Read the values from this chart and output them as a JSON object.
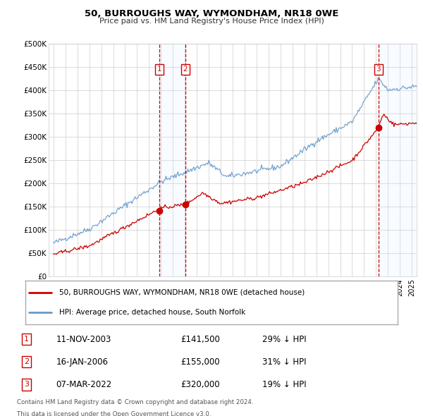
{
  "title": "50, BURROUGHS WAY, WYMONDHAM, NR18 0WE",
  "subtitle": "Price paid vs. HM Land Registry's House Price Index (HPI)",
  "legend_line1": "50, BURROUGHS WAY, WYMONDHAM, NR18 0WE (detached house)",
  "legend_line2": "HPI: Average price, detached house, South Norfolk",
  "footnote1": "Contains HM Land Registry data © Crown copyright and database right 2024.",
  "footnote2": "This data is licensed under the Open Government Licence v3.0.",
  "sale_color": "#cc0000",
  "hpi_color": "#6699cc",
  "purchases": [
    {
      "label": "1",
      "date": "11-NOV-2003",
      "price": 141500,
      "pct": "29%",
      "x": 2003.87
    },
    {
      "label": "2",
      "date": "16-JAN-2006",
      "price": 155000,
      "pct": "31%",
      "x": 2006.04
    },
    {
      "label": "3",
      "date": "07-MAR-2022",
      "price": 320000,
      "pct": "19%",
      "x": 2022.19
    }
  ],
  "table_rows": [
    {
      "num": "1",
      "date": "11-NOV-2003",
      "price": "£141,500",
      "pct": "29% ↓ HPI"
    },
    {
      "num": "2",
      "date": "16-JAN-2006",
      "price": "£155,000",
      "pct": "31% ↓ HPI"
    },
    {
      "num": "3",
      "date": "07-MAR-2022",
      "price": "£320,000",
      "pct": "19% ↓ HPI"
    }
  ],
  "ylim": [
    0,
    500000
  ],
  "yticks": [
    0,
    50000,
    100000,
    150000,
    200000,
    250000,
    300000,
    350000,
    400000,
    450000,
    500000
  ],
  "xlim": [
    1994.6,
    2025.4
  ],
  "background_color": "#ffffff",
  "grid_color": "#cccccc",
  "shade_color": "#ddeeff"
}
